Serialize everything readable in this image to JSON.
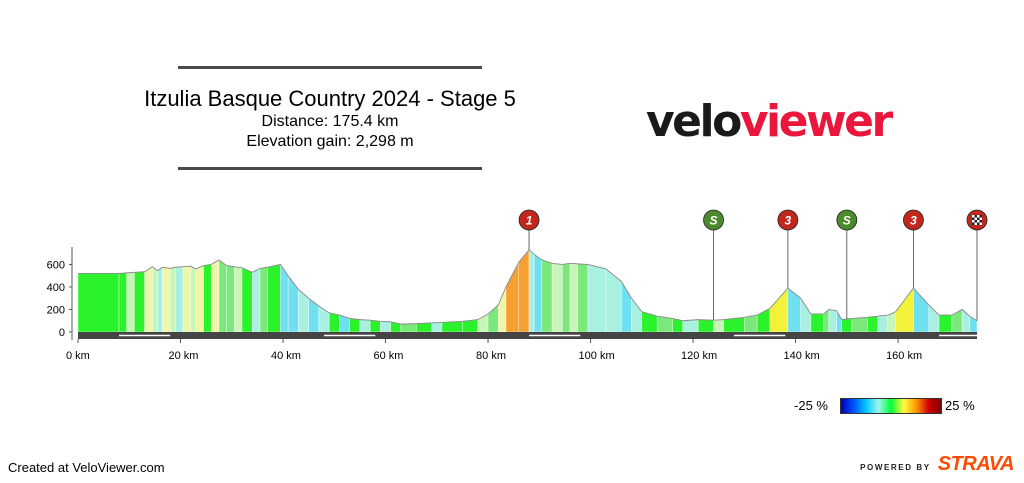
{
  "header": {
    "title": "Itzulia Basque Country 2024 - Stage 5",
    "distance": "Distance: 175.4 km",
    "elevation_gain": "Elevation gain: 2,298 m"
  },
  "logo": {
    "part1": "velo",
    "part2": "viewer"
  },
  "footer": {
    "created": "Created at VeloViewer.com",
    "powered_by": "POWERED BY",
    "strava": "STRAVA"
  },
  "legend": {
    "min_label": "-25 %",
    "max_label": "25 %"
  },
  "colors": {
    "ground": "#444444",
    "logo_red": "#e8173b",
    "marker_red": "#c0281e",
    "marker_green": "#4c8a2c",
    "strava": "#fc4c02"
  },
  "chart_data": {
    "type": "area",
    "title": "Itzulia Basque Country 2024 - Stage 5",
    "xlabel": "",
    "ylabel": "",
    "xlim": [
      0,
      175.4
    ],
    "ylim": [
      0,
      700
    ],
    "x_ticks": [
      0,
      20,
      40,
      60,
      80,
      100,
      120,
      140,
      160
    ],
    "x_tick_labels": [
      "0 km",
      "20 km",
      "40 km",
      "60 km",
      "80 km",
      "100 km",
      "120 km",
      "140 km",
      "160 km"
    ],
    "y_ticks": [
      0,
      200,
      400,
      600
    ],
    "y_tick_labels": [
      "0",
      "200",
      "400",
      "600"
    ],
    "distance_km": 175.4,
    "elevation_gain_m": 2298,
    "profile": [
      {
        "x": 0,
        "y": 520,
        "color": "#2bf32b"
      },
      {
        "x": 8,
        "y": 520,
        "color": "#2bf32b"
      },
      {
        "x": 9.5,
        "y": 525,
        "color": "#c8f5b8"
      },
      {
        "x": 11,
        "y": 530,
        "color": "#2bf32b"
      },
      {
        "x": 13,
        "y": 535,
        "color": "#eef7a8"
      },
      {
        "x": 14.5,
        "y": 580,
        "color": "#c8f5b8"
      },
      {
        "x": 15.5,
        "y": 545,
        "color": "#a8f0e0"
      },
      {
        "x": 16.5,
        "y": 575,
        "color": "#eef7a8"
      },
      {
        "x": 18,
        "y": 565,
        "color": "#c8f5b8"
      },
      {
        "x": 19,
        "y": 575,
        "color": "#a8f0e0"
      },
      {
        "x": 20.5,
        "y": 580,
        "color": "#eef7a8"
      },
      {
        "x": 22,
        "y": 585,
        "color": "#c8f5b8"
      },
      {
        "x": 23,
        "y": 560,
        "color": "#eef7a8"
      },
      {
        "x": 24.5,
        "y": 590,
        "color": "#2bf32b"
      },
      {
        "x": 26,
        "y": 600,
        "color": "#eef7a8"
      },
      {
        "x": 27.5,
        "y": 640,
        "color": "#7be87b"
      },
      {
        "x": 29,
        "y": 590,
        "color": "#7be87b"
      },
      {
        "x": 30.5,
        "y": 580,
        "color": "#c8f5b8"
      },
      {
        "x": 32,
        "y": 570,
        "color": "#2bf32b"
      },
      {
        "x": 34,
        "y": 530,
        "color": "#a8f0e0"
      },
      {
        "x": 35.5,
        "y": 565,
        "color": "#7be87b"
      },
      {
        "x": 37,
        "y": 575,
        "color": "#2bf32b"
      },
      {
        "x": 39.5,
        "y": 600,
        "color": "#6fe0f0"
      },
      {
        "x": 41,
        "y": 500,
        "color": "#6fe0f0"
      },
      {
        "x": 43,
        "y": 380,
        "color": "#a8f0e0"
      },
      {
        "x": 45,
        "y": 300,
        "color": "#6fe0f0"
      },
      {
        "x": 47,
        "y": 230,
        "color": "#a8f0e0"
      },
      {
        "x": 49,
        "y": 170,
        "color": "#2bf32b"
      },
      {
        "x": 51,
        "y": 150,
        "color": "#6fe0f0"
      },
      {
        "x": 53,
        "y": 120,
        "color": "#2bf32b"
      },
      {
        "x": 55,
        "y": 110,
        "color": "#a8f0e0"
      },
      {
        "x": 57,
        "y": 105,
        "color": "#2bf32b"
      },
      {
        "x": 59,
        "y": 95,
        "color": "#a8f0e0"
      },
      {
        "x": 61,
        "y": 90,
        "color": "#2bf32b"
      },
      {
        "x": 63,
        "y": 70,
        "color": "#7be87b"
      },
      {
        "x": 66,
        "y": 75,
        "color": "#2bf32b"
      },
      {
        "x": 69,
        "y": 80,
        "color": "#a8f0e0"
      },
      {
        "x": 71,
        "y": 85,
        "color": "#2bf32b"
      },
      {
        "x": 75,
        "y": 95,
        "color": "#2bf32b"
      },
      {
        "x": 78,
        "y": 110,
        "color": "#c8f5b8"
      },
      {
        "x": 80,
        "y": 160,
        "color": "#7be87b"
      },
      {
        "x": 82,
        "y": 240,
        "color": "#eef7a8"
      },
      {
        "x": 83.5,
        "y": 400,
        "color": "#f5a030"
      },
      {
        "x": 86,
        "y": 620,
        "color": "#f5a030"
      },
      {
        "x": 88,
        "y": 730,
        "color": "#a8f0e0"
      },
      {
        "x": 89,
        "y": 690,
        "color": "#6fe0f0"
      },
      {
        "x": 90.5,
        "y": 640,
        "color": "#7be87b"
      },
      {
        "x": 92.5,
        "y": 610,
        "color": "#c8f5b8"
      },
      {
        "x": 94.5,
        "y": 600,
        "color": "#7be87b"
      },
      {
        "x": 96,
        "y": 610,
        "color": "#c8f5b8"
      },
      {
        "x": 97.5,
        "y": 605,
        "color": "#7be87b"
      },
      {
        "x": 99.5,
        "y": 600,
        "color": "#a8f0e0"
      },
      {
        "x": 103,
        "y": 560,
        "color": "#a8f0e0"
      },
      {
        "x": 106,
        "y": 450,
        "color": "#6fe0f0"
      },
      {
        "x": 108,
        "y": 300,
        "color": "#a8f0e0"
      },
      {
        "x": 110,
        "y": 180,
        "color": "#2bf32b"
      },
      {
        "x": 113,
        "y": 140,
        "color": "#7be87b"
      },
      {
        "x": 116,
        "y": 120,
        "color": "#2bf32b"
      },
      {
        "x": 118,
        "y": 100,
        "color": "#a8f0e0"
      },
      {
        "x": 121,
        "y": 110,
        "color": "#2bf32b"
      },
      {
        "x": 124,
        "y": 105,
        "color": "#c8f5b8"
      },
      {
        "x": 126,
        "y": 110,
        "color": "#2bf32b"
      },
      {
        "x": 130,
        "y": 130,
        "color": "#7be87b"
      },
      {
        "x": 132.5,
        "y": 150,
        "color": "#2bf32b"
      },
      {
        "x": 135,
        "y": 210,
        "color": "#f2f23a"
      },
      {
        "x": 138.5,
        "y": 390,
        "color": "#6fe0f0"
      },
      {
        "x": 141,
        "y": 300,
        "color": "#a8f0e0"
      },
      {
        "x": 143,
        "y": 160,
        "color": "#2bf32b"
      },
      {
        "x": 145.5,
        "y": 160,
        "color": "#7be87b"
      },
      {
        "x": 146.5,
        "y": 200,
        "color": "#a8f0e0"
      },
      {
        "x": 148,
        "y": 190,
        "color": "#6fe0f0"
      },
      {
        "x": 149,
        "y": 110,
        "color": "#2bf32b"
      },
      {
        "x": 151,
        "y": 120,
        "color": "#7be87b"
      },
      {
        "x": 154,
        "y": 130,
        "color": "#2bf32b"
      },
      {
        "x": 156,
        "y": 140,
        "color": "#a8f0e0"
      },
      {
        "x": 158,
        "y": 150,
        "color": "#c8f5b8"
      },
      {
        "x": 159.5,
        "y": 180,
        "color": "#f2f23a"
      },
      {
        "x": 163,
        "y": 390,
        "color": "#6fe0f0"
      },
      {
        "x": 166,
        "y": 240,
        "color": "#a8f0e0"
      },
      {
        "x": 168,
        "y": 150,
        "color": "#2bf32b"
      },
      {
        "x": 170.5,
        "y": 150,
        "color": "#7be87b"
      },
      {
        "x": 172.5,
        "y": 200,
        "color": "#a8f0e0"
      },
      {
        "x": 174,
        "y": 140,
        "color": "#6fe0f0"
      },
      {
        "x": 175.4,
        "y": 100,
        "color": "#2bf32b"
      }
    ],
    "markers": [
      {
        "x": 88,
        "label": "1",
        "kind": "climb",
        "color": "#c0281e"
      },
      {
        "x": 124,
        "label": "S",
        "kind": "sprint",
        "color": "#4c8a2c"
      },
      {
        "x": 138.5,
        "label": "3",
        "kind": "climb",
        "color": "#c0281e"
      },
      {
        "x": 150,
        "label": "S",
        "kind": "sprint",
        "color": "#4c8a2c"
      },
      {
        "x": 163,
        "label": "3",
        "kind": "climb",
        "color": "#c0281e"
      },
      {
        "x": 175.4,
        "label": "finish",
        "kind": "finish",
        "color": "#c0281e"
      }
    ]
  }
}
